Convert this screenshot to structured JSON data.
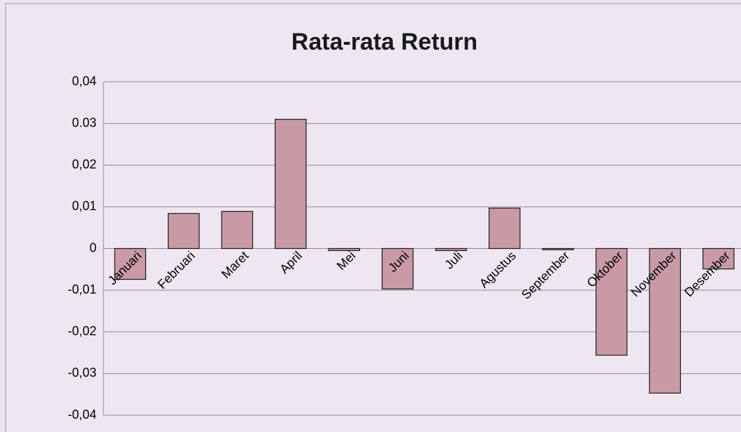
{
  "chart_data": {
    "type": "bar",
    "title": "Rata-rata Return",
    "categories": [
      "Januari",
      "Februari",
      "Maret",
      "April",
      "Mei",
      "Juni",
      "Juli",
      "Agustus",
      "September",
      "Oktober",
      "November",
      "Desember"
    ],
    "values": [
      -0.0074,
      0.0084,
      0.0089,
      0.031,
      -0.0005,
      -0.0097,
      -0.0005,
      0.0097,
      -0.0003,
      -0.0256,
      -0.0347,
      -0.0049
    ],
    "color": "#c99aa6",
    "ylim": [
      -0.04,
      0.04
    ],
    "yticks": [
      {
        "value": -0.04,
        "label": "-0,04"
      },
      {
        "value": -0.03,
        "label": "-0,03"
      },
      {
        "value": -0.02,
        "label": "-0,02"
      },
      {
        "value": -0.01,
        "label": "-0,01"
      },
      0,
      {
        "value": 0.01,
        "label": "0,01"
      },
      {
        "value": 0.02,
        "label": "0,02"
      },
      0.03,
      {
        "value": 0.04,
        "label": "0,04"
      }
    ],
    "grid": true
  }
}
